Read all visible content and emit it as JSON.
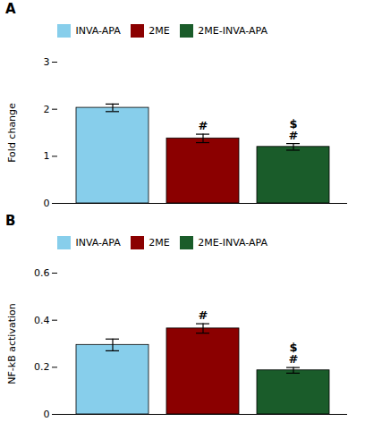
{
  "chart_data": [
    {
      "type": "bar",
      "title": "A",
      "categories": [
        "INVA-APA",
        "2ME",
        "2ME-INVA-APA"
      ],
      "values": [
        2.03,
        1.38,
        1.2
      ],
      "errors": [
        0.08,
        0.09,
        0.07
      ],
      "colors": [
        "#87CEEB",
        "#8B0000",
        "#1A5C2A"
      ],
      "ylabel": "Fold change",
      "ylim": [
        0,
        3
      ],
      "yticks": [
        0,
        1,
        2,
        3
      ],
      "annotations": [
        {
          "category": "2ME",
          "lines": [
            "#"
          ]
        },
        {
          "category": "2ME-INVA-APA",
          "lines": [
            "$",
            "#"
          ]
        }
      ],
      "legend": "top",
      "tick_labels": "y",
      "grid": false
    },
    {
      "type": "bar",
      "title": "B",
      "categories": [
        "INVA-APA",
        "2ME",
        "2ME-INVA-APA"
      ],
      "values": [
        0.295,
        0.365,
        0.187
      ],
      "errors": [
        0.025,
        0.02,
        0.012
      ],
      "colors": [
        "#87CEEB",
        "#8B0000",
        "#1A5C2A"
      ],
      "ylabel": "NF-kB activation",
      "ylim": [
        0,
        0.6
      ],
      "yticks": [
        0.0,
        0.2,
        0.4,
        0.6
      ],
      "annotations": [
        {
          "category": "2ME",
          "lines": [
            "#"
          ]
        },
        {
          "category": "2ME-INVA-APA",
          "lines": [
            "$",
            "#"
          ]
        }
      ],
      "legend": "top",
      "tick_labels": "y",
      "grid": false
    }
  ]
}
